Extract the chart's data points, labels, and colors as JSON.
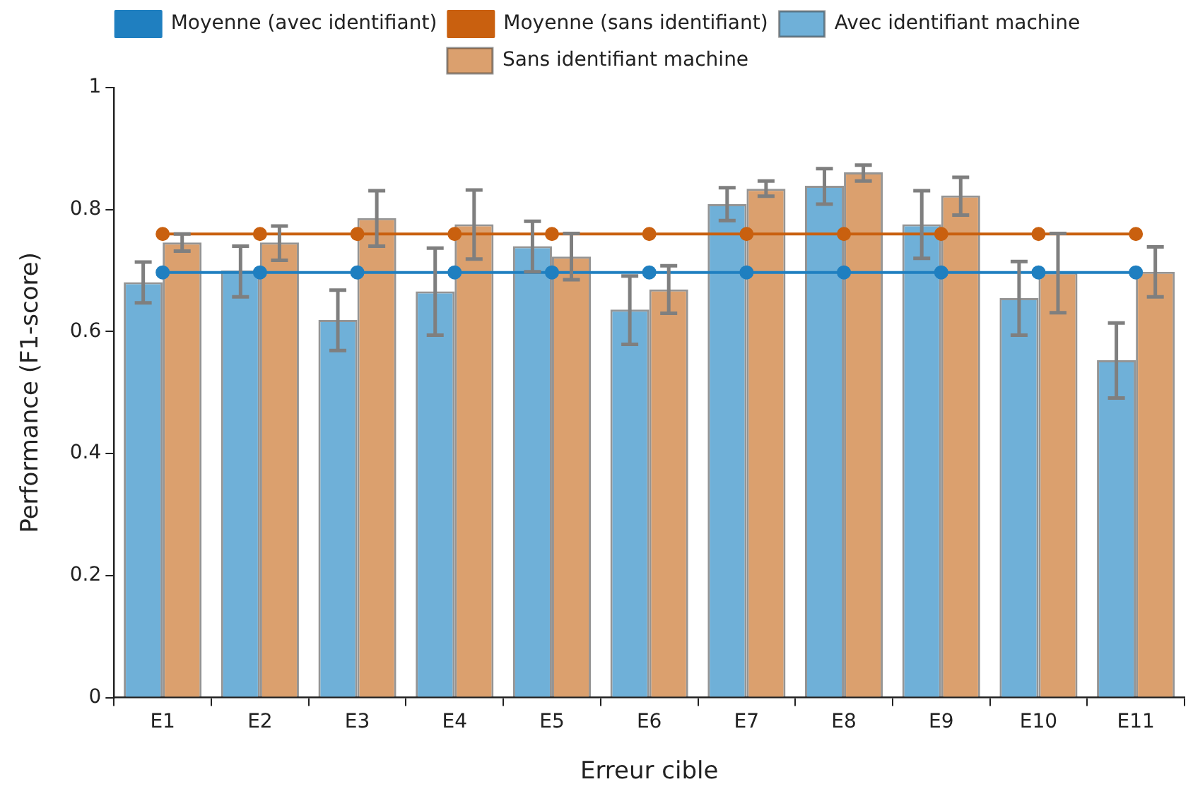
{
  "chart_data": {
    "type": "bar",
    "xlabel": "Erreur cible",
    "ylabel": "Performance (F1-score)",
    "categories": [
      "E1",
      "E2",
      "E3",
      "E4",
      "E5",
      "E6",
      "E7",
      "E8",
      "E9",
      "E10",
      "E11"
    ],
    "series": [
      {
        "name": "Avec identifiant machine",
        "color": "#6fb0d8",
        "values": [
          0.681,
          0.7,
          0.619,
          0.666,
          0.74,
          0.636,
          0.809,
          0.839,
          0.776,
          0.655,
          0.553
        ],
        "errors": [
          [
            0.647,
            0.714
          ],
          [
            0.657,
            0.74
          ],
          [
            0.569,
            0.668
          ],
          [
            0.594,
            0.737
          ],
          [
            0.698,
            0.781
          ],
          [
            0.579,
            0.691
          ],
          [
            0.782,
            0.836
          ],
          [
            0.809,
            0.867
          ],
          [
            0.72,
            0.831
          ],
          [
            0.594,
            0.715
          ],
          [
            0.491,
            0.614
          ]
        ]
      },
      {
        "name": "Sans identifiant machine",
        "color": "#dba06e",
        "values": [
          0.746,
          0.746,
          0.786,
          0.776,
          0.723,
          0.669,
          0.834,
          0.861,
          0.823,
          0.697,
          0.698
        ],
        "errors": [
          [
            0.732,
            0.76
          ],
          [
            0.717,
            0.773
          ],
          [
            0.74,
            0.831
          ],
          [
            0.719,
            0.832
          ],
          [
            0.685,
            0.761
          ],
          [
            0.63,
            0.708
          ],
          [
            0.822,
            0.847
          ],
          [
            0.847,
            0.873
          ],
          [
            0.791,
            0.853
          ],
          [
            0.631,
            0.761
          ],
          [
            0.657,
            0.739
          ]
        ]
      },
      {
        "name": "Moyenne (avec identifiant)",
        "type": "line",
        "color": "#1f7fc0",
        "marker": "circle",
        "values": [
          0.697,
          0.697,
          0.697,
          0.697,
          0.697,
          0.697,
          0.697,
          0.697,
          0.697,
          0.697,
          0.697
        ]
      },
      {
        "name": "Moyenne (sans identifiant)",
        "type": "line",
        "color": "#c9600f",
        "marker": "circle",
        "values": [
          0.76,
          0.76,
          0.76,
          0.76,
          0.76,
          0.76,
          0.76,
          0.76,
          0.76,
          0.76,
          0.76
        ]
      }
    ],
    "ylim": [
      0,
      1
    ],
    "yticks": [
      0,
      0.2,
      0.4,
      0.6,
      0.8,
      1
    ],
    "grid": false,
    "legend": "top"
  }
}
